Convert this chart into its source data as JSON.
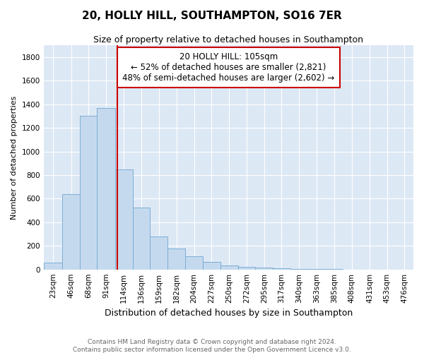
{
  "title": "20, HOLLY HILL, SOUTHAMPTON, SO16 7ER",
  "subtitle": "Size of property relative to detached houses in Southampton",
  "xlabel": "Distribution of detached houses by size in Southampton",
  "ylabel": "Number of detached properties",
  "bar_color": "#c5d9ee",
  "bar_edge_color": "#7aaed4",
  "background_color": "#dde8f5",
  "grid_color": "#ffffff",
  "property_size": 105,
  "annotation_text": "20 HOLLY HILL: 105sqm\n← 52% of detached houses are smaller (2,821)\n48% of semi-detached houses are larger (2,602) →",
  "annotation_box_color": "white",
  "annotation_box_edge": "#cc0000",
  "vline_color": "#cc0000",
  "footer": "Contains HM Land Registry data © Crown copyright and database right 2024.\nContains public sector information licensed under the Open Government Licence v3.0.",
  "bin_edges": [
    10,
    34,
    57,
    79,
    102,
    125,
    147,
    170,
    193,
    215,
    238,
    261,
    283,
    306,
    328,
    351,
    374,
    396,
    419,
    442,
    464,
    487
  ],
  "bar_heights": [
    60,
    640,
    1300,
    1370,
    850,
    525,
    280,
    175,
    110,
    65,
    35,
    25,
    15,
    10,
    5,
    3,
    2,
    1,
    1,
    0,
    0
  ],
  "tick_labels": [
    "23sqm",
    "46sqm",
    "68sqm",
    "91sqm",
    "114sqm",
    "136sqm",
    "159sqm",
    "182sqm",
    "204sqm",
    "227sqm",
    "250sqm",
    "272sqm",
    "295sqm",
    "317sqm",
    "340sqm",
    "363sqm",
    "385sqm",
    "408sqm",
    "431sqm",
    "453sqm",
    "476sqm"
  ],
  "ylim": [
    0,
    1900
  ],
  "yticks": [
    0,
    200,
    400,
    600,
    800,
    1000,
    1200,
    1400,
    1600,
    1800
  ],
  "title_fontsize": 11,
  "subtitle_fontsize": 9,
  "ylabel_fontsize": 8,
  "xlabel_fontsize": 9,
  "tick_fontsize": 7.5,
  "footer_fontsize": 6.5,
  "annot_fontsize": 8.5
}
